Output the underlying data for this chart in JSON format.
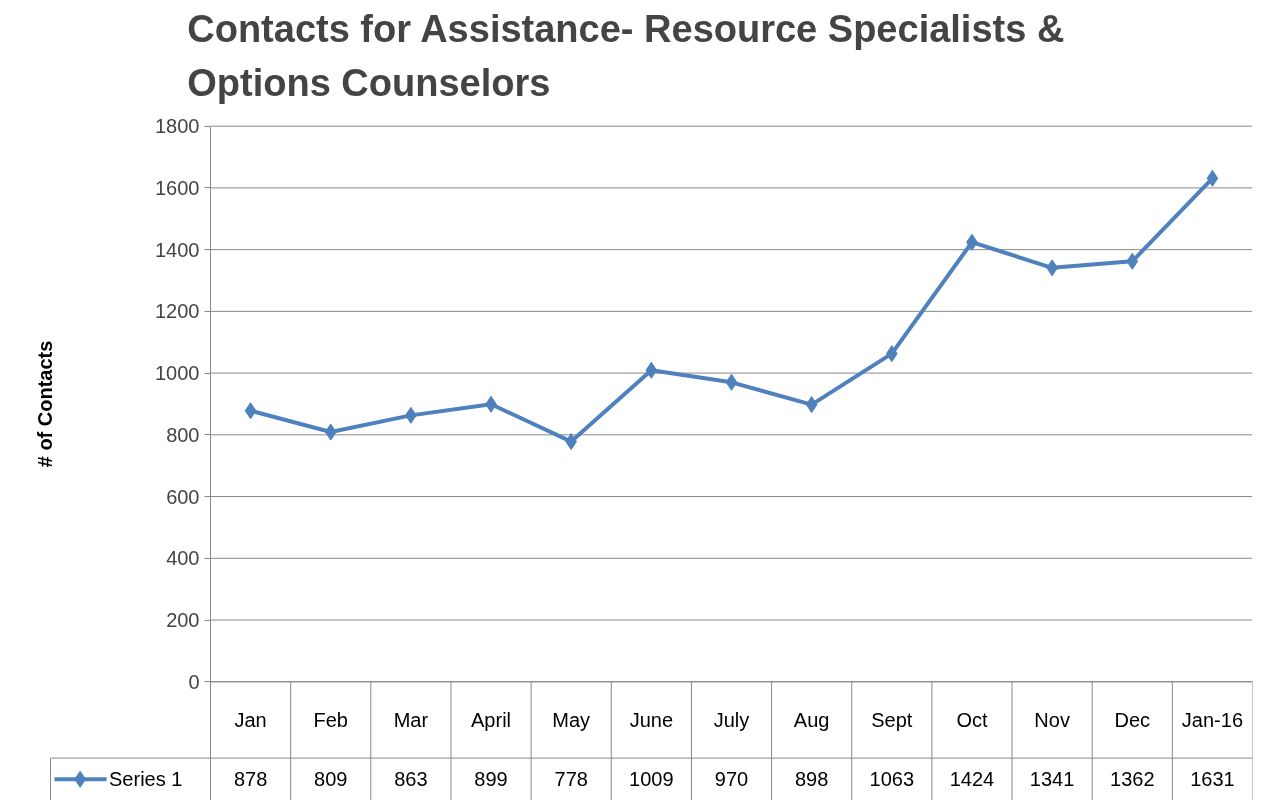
{
  "chart_data": {
    "type": "line",
    "title": "Contacts for Assistance- Resource Specialists & Options Counselors",
    "ylabel": "# of Contacts",
    "categories": [
      "Jan",
      "Feb",
      "Mar",
      "April",
      "May",
      "June",
      "July",
      "Aug",
      "Sept",
      "Oct",
      "Nov",
      "Dec",
      "Jan-16"
    ],
    "series": [
      {
        "name": "Series 1",
        "color": "#4f81bd",
        "values": [
          878,
          809,
          863,
          899,
          778,
          1009,
          970,
          898,
          1063,
          1424,
          1341,
          1362,
          1631
        ]
      }
    ],
    "ylim": [
      0,
      1800
    ],
    "yticks": [
      0,
      200,
      400,
      600,
      800,
      1000,
      1200,
      1400,
      1600,
      1800
    ],
    "grid": "y",
    "marker": "diamond",
    "line_style": "solid",
    "data_labels": true,
    "legend": "bottom"
  }
}
